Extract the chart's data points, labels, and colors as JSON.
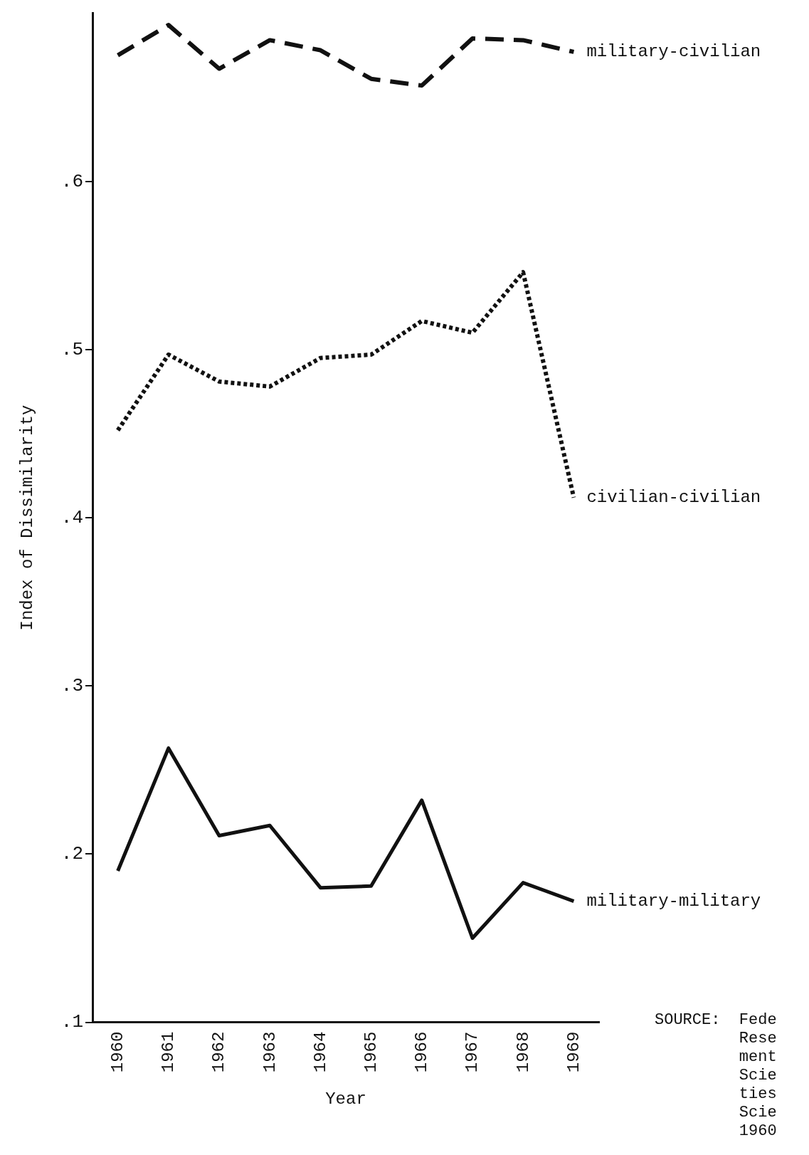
{
  "chart_data": {
    "type": "line",
    "xlabel": "Year",
    "ylabel": "Index of Dissimilarity",
    "categories": [
      "1960",
      "1961",
      "1962",
      "1963",
      "1964",
      "1965",
      "1966",
      "1967",
      "1968",
      "1969"
    ],
    "series": [
      {
        "name": "military-civilian",
        "color": "#111111",
        "line_style": "dashed",
        "values": [
          0.675,
          0.693,
          0.667,
          0.684,
          0.678,
          0.661,
          0.657,
          0.685,
          0.684,
          0.677
        ]
      },
      {
        "name": "civilian-civilian",
        "color": "#111111",
        "line_style": "dotted",
        "values": [
          0.452,
          0.497,
          0.481,
          0.478,
          0.495,
          0.497,
          0.517,
          0.51,
          0.546,
          0.412
        ]
      },
      {
        "name": "military-military",
        "color": "#111111",
        "line_style": "solid",
        "values": [
          0.19,
          0.263,
          0.211,
          0.217,
          0.18,
          0.181,
          0.232,
          0.15,
          0.183,
          0.172
        ]
      }
    ],
    "ylim": [
      0.1,
      0.7
    ],
    "yticks": [
      {
        "value": 0.1,
        "label": ".1"
      },
      {
        "value": 0.2,
        "label": ".2"
      },
      {
        "value": 0.3,
        "label": ".3"
      },
      {
        "value": 0.4,
        "label": ".4"
      },
      {
        "value": 0.5,
        "label": ".5"
      },
      {
        "value": 0.6,
        "label": ".6"
      }
    ],
    "grid": false,
    "legend": false,
    "marker": "none",
    "annotations": [
      "SOURCE:  Fede\nRese\nment\nScie\nties\nScie\n1960"
    ]
  }
}
